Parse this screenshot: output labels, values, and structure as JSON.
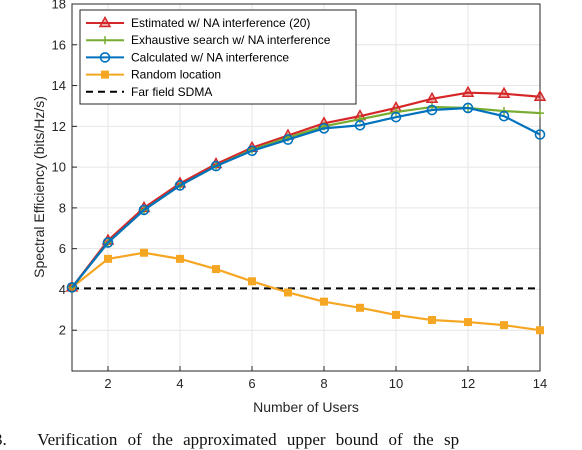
{
  "chart_data": {
    "type": "line",
    "title": "",
    "xlabel": "Number of Users",
    "ylabel": "Spectral Efficiency (bits/Hz/s)",
    "xlim": [
      1,
      14
    ],
    "ylim": [
      0,
      18
    ],
    "xticks": [
      "2",
      "4",
      "6",
      "8",
      "10",
      "12",
      "14"
    ],
    "yticks": [
      "2",
      "4",
      "6",
      "8",
      "10",
      "12",
      "14",
      "16",
      "18"
    ],
    "grid": true,
    "legend_position": "top-left",
    "x": [
      1,
      2,
      3,
      4,
      5,
      6,
      7,
      8,
      9,
      10,
      11,
      12,
      13,
      14
    ],
    "series": [
      {
        "name": "Estimated w/ NA interference (20)",
        "color": "#d62728",
        "marker": "triangle",
        "values": [
          4.1,
          6.4,
          8.0,
          9.2,
          10.15,
          10.95,
          11.55,
          12.15,
          12.5,
          12.9,
          13.35,
          13.65,
          13.6,
          13.45
        ]
      },
      {
        "name": "Exhaustive search w/ NA interference",
        "color": "#77ac30",
        "marker": "plus",
        "values": [
          4.1,
          6.3,
          7.9,
          9.1,
          10.05,
          10.85,
          11.45,
          12.0,
          12.35,
          12.7,
          12.95,
          12.9,
          12.75,
          12.65
        ]
      },
      {
        "name": "Calculated w/ NA interference",
        "color": "#0072bd",
        "marker": "circle",
        "values": [
          4.1,
          6.3,
          7.9,
          9.1,
          10.05,
          10.8,
          11.35,
          11.9,
          12.05,
          12.45,
          12.8,
          12.9,
          12.5,
          11.6
        ]
      },
      {
        "name": "Random location",
        "color": "#f5a623",
        "marker": "square",
        "values": [
          4.1,
          5.5,
          5.8,
          5.5,
          5.0,
          4.4,
          3.85,
          3.4,
          3.1,
          2.75,
          2.5,
          2.4,
          2.25,
          2.0
        ]
      },
      {
        "name": "Far field SDMA",
        "color": "#000000",
        "marker": "none",
        "dashed": true,
        "values": [
          4.05,
          4.05,
          4.05,
          4.05,
          4.05,
          4.05,
          4.05,
          4.05,
          4.05,
          4.05,
          4.05,
          4.05,
          4.05,
          4.05
        ]
      }
    ]
  },
  "caption": "3.   Verification of the approximated upper bound of the sp"
}
